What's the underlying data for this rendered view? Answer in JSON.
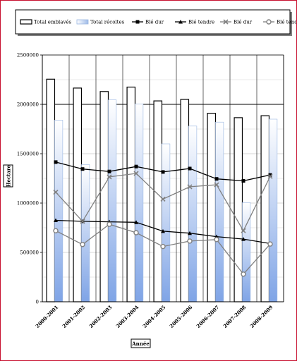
{
  "chart_data": {
    "type": "bar",
    "categories": [
      "2000-2001",
      "2001-2002",
      "2002-2003",
      "2003-2004",
      "2004-2005",
      "2005-2006",
      "2006-2007",
      "2007-2008",
      "2008-2009"
    ],
    "xlabel": "Année",
    "ylabel": "Hectare",
    "ylim": [
      0,
      2500000
    ],
    "yticks": [
      0,
      500000,
      1000000,
      1500000,
      2000000,
      2500000
    ],
    "ytick_labels": [
      "0",
      "500000",
      "1000000",
      "1500000",
      "2000000",
      "2500000"
    ],
    "legend_position": "top",
    "bar_series": [
      {
        "name": "Total emblavés",
        "values": [
          2255000,
          2165000,
          2130000,
          2175000,
          2035000,
          2050000,
          1910000,
          1865000,
          1885000
        ],
        "color": "#ffffff",
        "stroke": "#000000"
      },
      {
        "name": "Total récoltes",
        "values": [
          1840000,
          1390000,
          2045000,
          2005000,
          1600000,
          1780000,
          1820000,
          1005000,
          1850000
        ],
        "color": "#a9c6ee",
        "stroke": "#8aaad8"
      }
    ],
    "line_series": [
      {
        "name": "Blé dur",
        "marker": "square",
        "color": "#000000",
        "values": [
          1415000,
          1345000,
          1320000,
          1370000,
          1315000,
          1350000,
          1245000,
          1225000,
          1285000
        ]
      },
      {
        "name": "Blé tendre",
        "marker": "triangle",
        "color": "#000000",
        "values": [
          825000,
          815000,
          810000,
          805000,
          715000,
          695000,
          660000,
          635000,
          590000
        ]
      },
      {
        "name": "Blé dur",
        "marker": "x",
        "color": "#808080",
        "values": [
          1110000,
          815000,
          1265000,
          1300000,
          1040000,
          1165000,
          1185000,
          720000,
          1270000
        ]
      },
      {
        "name": "Blé tendre",
        "marker": "circle",
        "color": "#808080",
        "values": [
          720000,
          580000,
          785000,
          700000,
          560000,
          615000,
          630000,
          280000,
          585000
        ]
      }
    ]
  }
}
